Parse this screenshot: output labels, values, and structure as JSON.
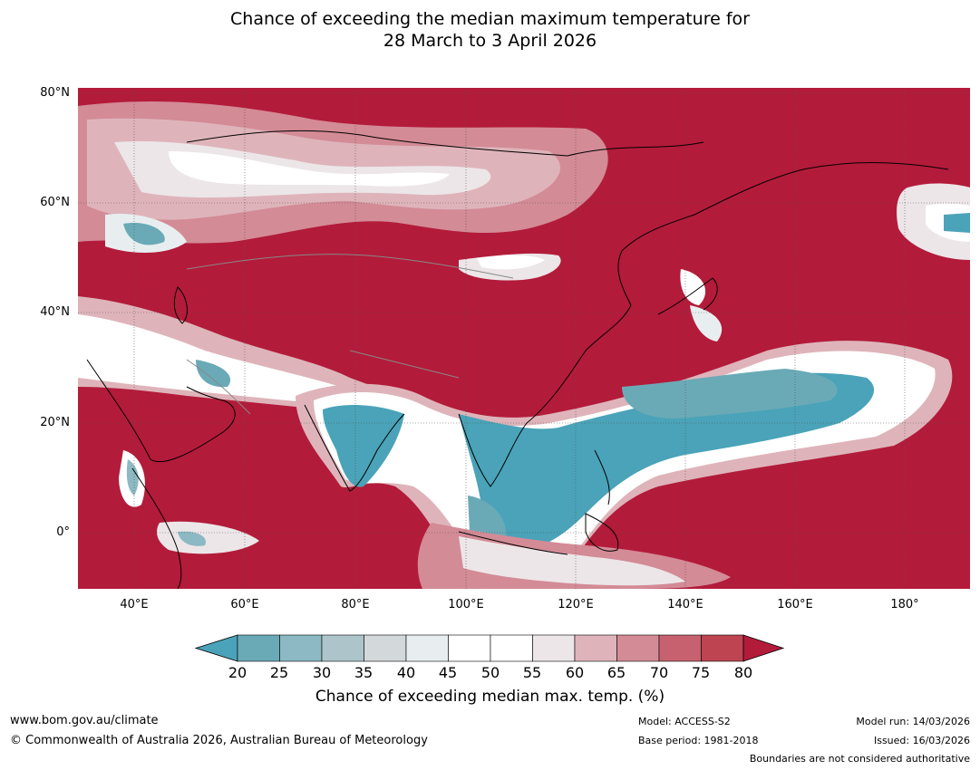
{
  "title": {
    "line1": "Chance of exceeding the median maximum temperature for",
    "line2": "28 March to 3 April 2026"
  },
  "axes": {
    "lat_labels": [
      "80°N",
      "60°N",
      "40°N",
      "20°N",
      "0°"
    ],
    "lon_labels": [
      "40°E",
      "60°E",
      "80°E",
      "100°E",
      "120°E",
      "140°E",
      "160°E",
      "180°"
    ]
  },
  "legend": {
    "ticks": [
      "20",
      "25",
      "30",
      "35",
      "40",
      "45",
      "50",
      "55",
      "60",
      "65",
      "70",
      "75",
      "80"
    ],
    "colors": [
      "#4aa3b8",
      "#6aaab7",
      "#8cb9c3",
      "#adc5ca",
      "#d3d8da",
      "#e8eef0",
      "#ffffff",
      "#ffffff",
      "#ece6e8",
      "#deb4ba",
      "#d38b96",
      "#c7616f",
      "#be4452",
      "#b31b3a"
    ],
    "title": "Chance of exceeding median max. temp. (%)"
  },
  "footer": {
    "website": "www.bom.gov.au/climate",
    "copyright": "© Commonwealth of Australia 2026, Australian Bureau of Meteorology",
    "model": "Model: ACCESS-S2",
    "base_period": "Base period: 1981-2018",
    "model_run": "Model run: 14/03/2026",
    "issued": "Issued: 16/03/2026",
    "disclaimer": "Boundaries are not considered authoritative"
  },
  "colors": {
    "hot": "#b31b3a",
    "cool": "#4aa3b8",
    "neutral": "#ffffff"
  }
}
